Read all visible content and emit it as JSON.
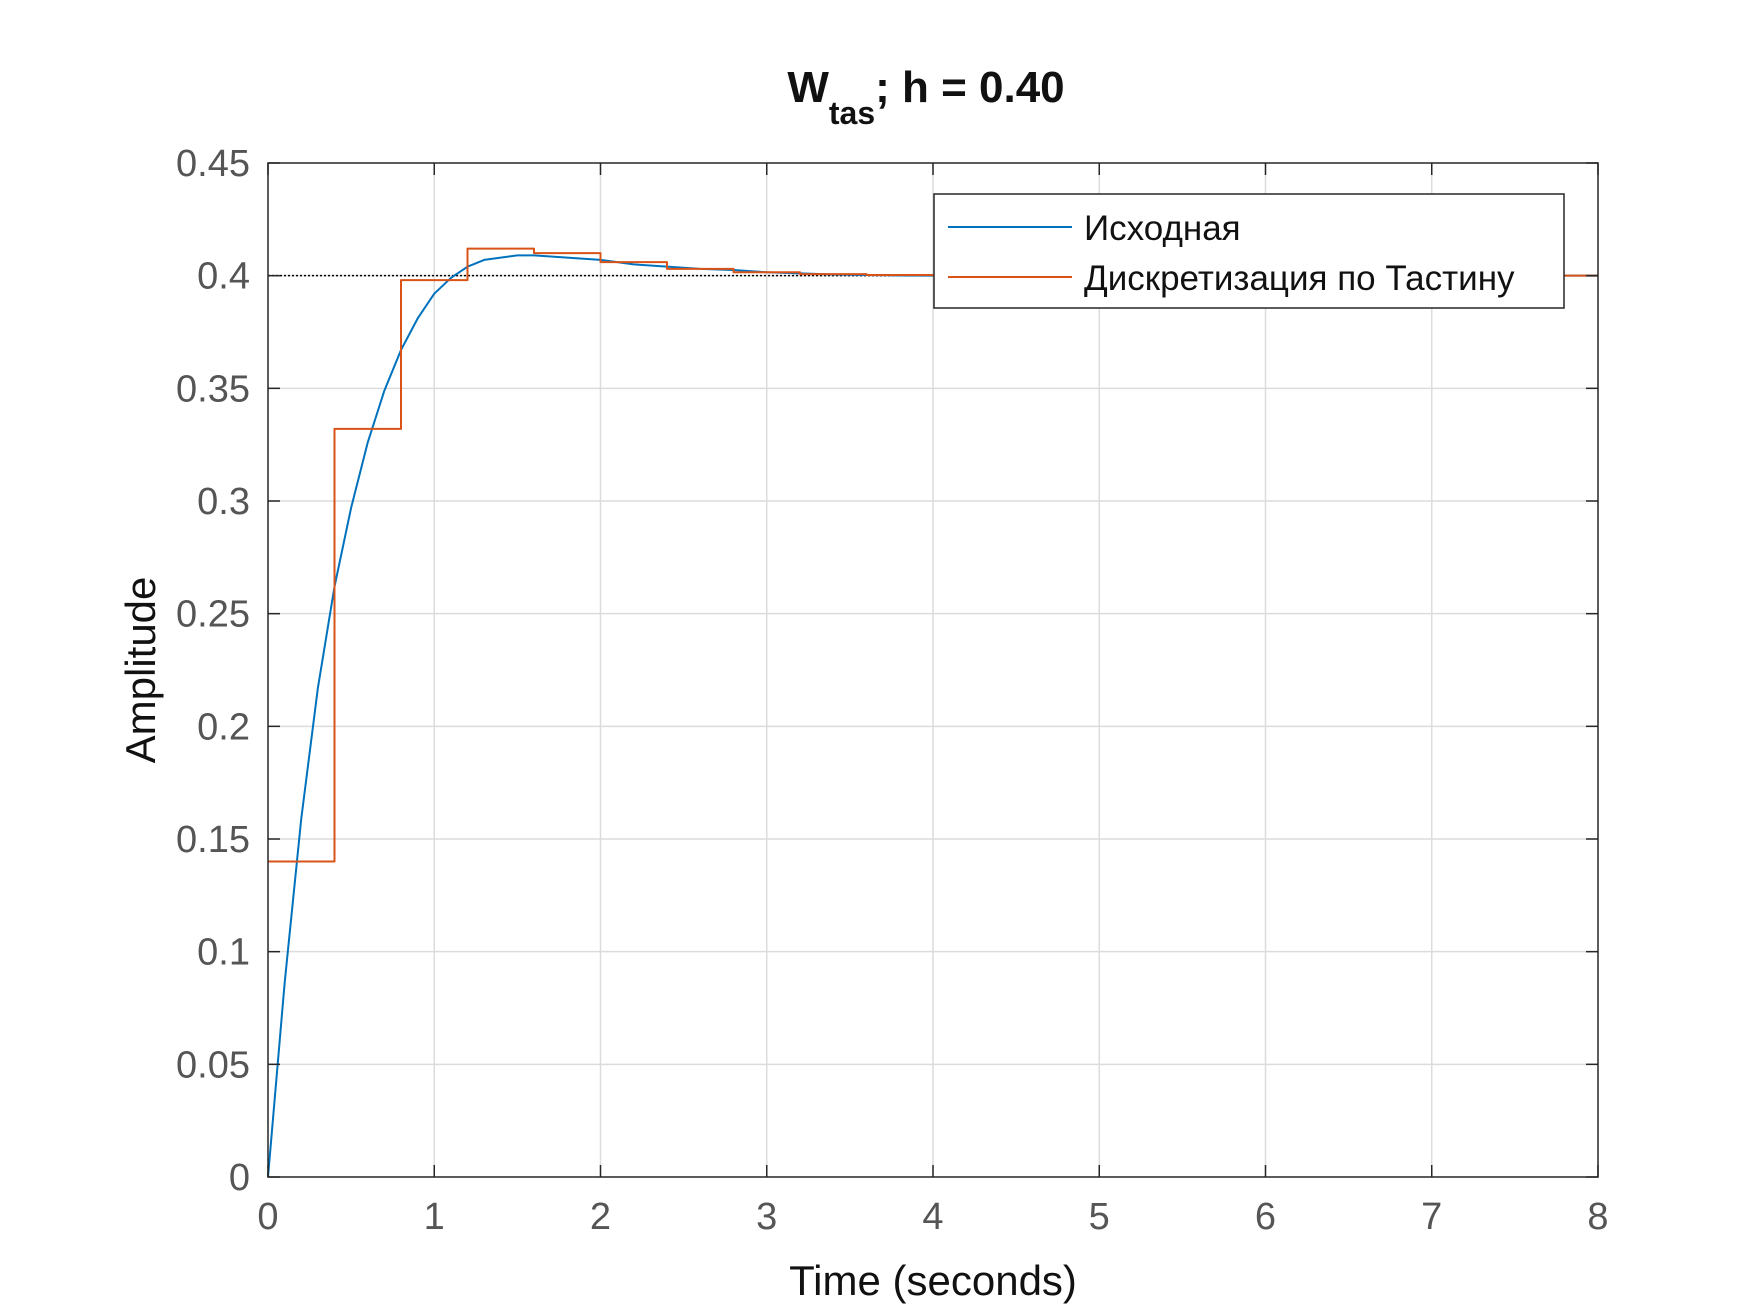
{
  "chart_data": {
    "type": "line",
    "title_main": "W",
    "title_sub": "tas",
    "title_rest": "; h = 0.40",
    "xlabel": "Time (seconds)",
    "ylabel": "Amplitude",
    "xlim": [
      0,
      8
    ],
    "ylim": [
      0,
      0.45
    ],
    "x_ticks": [
      0,
      1,
      2,
      3,
      4,
      5,
      6,
      7,
      8
    ],
    "x_tick_labels": [
      "0",
      "1",
      "2",
      "3",
      "4",
      "5",
      "6",
      "7",
      "8"
    ],
    "y_ticks": [
      0,
      0.05,
      0.1,
      0.15,
      0.2,
      0.25,
      0.3,
      0.35,
      0.4,
      0.45
    ],
    "y_tick_labels": [
      "0",
      "0.05",
      "0.1",
      "0.15",
      "0.2",
      "0.25",
      "0.3",
      "0.35",
      "0.4",
      "0.45"
    ],
    "grid": true,
    "legend_position": "top-right",
    "reference_line": {
      "y": 0.4,
      "color": "#000000",
      "style": "dotted"
    },
    "series": [
      {
        "name": "Исходная",
        "kind": "continuous",
        "color": "#0072BD",
        "x": [
          0,
          0.1,
          0.2,
          0.3,
          0.4,
          0.5,
          0.6,
          0.7,
          0.8,
          0.9,
          1.0,
          1.1,
          1.2,
          1.3,
          1.4,
          1.5,
          1.6,
          1.8,
          2.0,
          2.2,
          2.4,
          2.6,
          2.8,
          3.0,
          3.2,
          3.4,
          3.6,
          3.8,
          4.0,
          5.0,
          6.0,
          7.0,
          8.0
        ],
        "y": [
          0,
          0.086,
          0.159,
          0.217,
          0.262,
          0.297,
          0.326,
          0.349,
          0.367,
          0.381,
          0.392,
          0.399,
          0.404,
          0.407,
          0.408,
          0.409,
          0.409,
          0.408,
          0.407,
          0.405,
          0.404,
          0.403,
          0.4025,
          0.4015,
          0.401,
          0.4005,
          0.4003,
          0.4001,
          0.4,
          0.4,
          0.4,
          0.4,
          0.4
        ]
      },
      {
        "name": "Дискретизация по Тастину",
        "kind": "stairs",
        "color": "#D95319",
        "x": [
          0,
          0.4,
          0.8,
          1.2,
          1.6,
          2.0,
          2.4,
          2.8,
          3.2,
          3.6,
          4.0,
          4.4,
          4.8,
          5.2,
          5.6,
          6.0,
          6.4,
          6.8,
          7.2,
          7.6,
          8.0
        ],
        "y": [
          0.14,
          0.332,
          0.398,
          0.412,
          0.41,
          0.406,
          0.403,
          0.4015,
          0.4007,
          0.4003,
          0.4001,
          0.4,
          0.4,
          0.4,
          0.4,
          0.4,
          0.4,
          0.4,
          0.4,
          0.4,
          0.4
        ]
      }
    ]
  }
}
